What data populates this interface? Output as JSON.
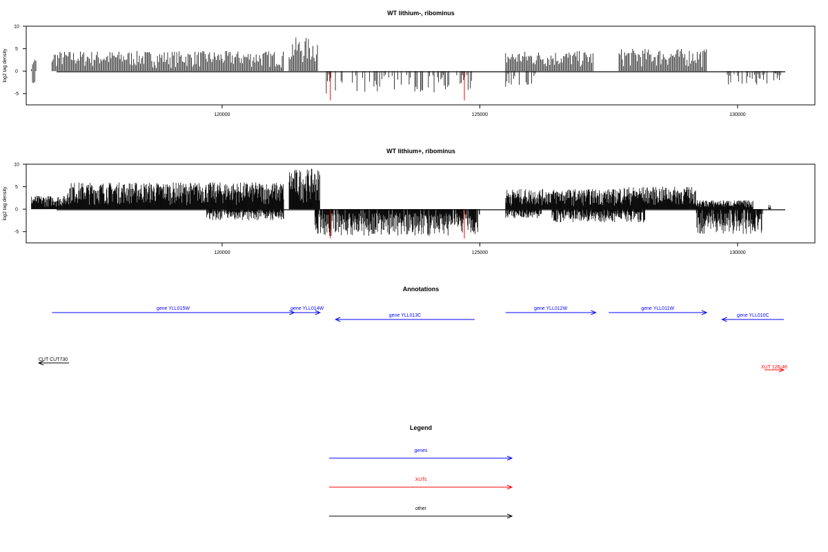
{
  "chart_data": [
    {
      "type": "bar",
      "title": "WT lithium-, ribominus",
      "ylabel": "log2 tag density",
      "xlim": [
        116200,
        131500
      ],
      "ylim": [
        -7.5,
        10
      ],
      "x_ticks": [
        120000,
        125000,
        130000
      ],
      "y_ticks": [
        10,
        5,
        0,
        -5
      ],
      "grid": false,
      "series": [
        {
          "color": "#000000",
          "segments": [
            {
              "x": [
                116300,
                116400
              ],
              "y": [
                3,
                -3.5
              ]
            },
            {
              "x": [
                116700,
                121200
              ],
              "y": [
                4.5,
                0
              ]
            },
            {
              "x": [
                121300,
                121850
              ],
              "y": [
                7.5,
                0
              ]
            },
            {
              "x": [
                122000,
                124900
              ],
              "y": [
                0,
                -5
              ]
            },
            {
              "x": [
                125500,
                126200
              ],
              "y": [
                0,
                -3.5
              ]
            },
            {
              "x": [
                125500,
                127200
              ],
              "y": [
                4.5,
                0
              ]
            },
            {
              "x": [
                127700,
                129400
              ],
              "y": [
                5,
                0
              ]
            },
            {
              "x": [
                129800,
                130900
              ],
              "y": [
                0,
                -3
              ]
            }
          ]
        },
        {
          "color": "#ff0000",
          "spikes": [
            {
              "x": 122100,
              "y": -6.5
            },
            {
              "x": 124700,
              "y": -6.5
            }
          ]
        }
      ]
    },
    {
      "type": "bar",
      "title": "WT lithium+, ribominus",
      "ylabel": "log2 tag density",
      "xlim": [
        116200,
        131500
      ],
      "ylim": [
        -7.5,
        10
      ],
      "x_ticks": [
        120000,
        125000,
        130000
      ],
      "y_ticks": [
        10,
        5,
        0,
        -5
      ],
      "grid": false,
      "series": [
        {
          "color": "#000000",
          "segments": [
            {
              "x": [
                116300,
                117000
              ],
              "y": [
                3,
                0
              ]
            },
            {
              "x": [
                117000,
                121200
              ],
              "y": [
                6,
                0
              ]
            },
            {
              "x": [
                121300,
                121900
              ],
              "y": [
                9,
                0
              ]
            },
            {
              "x": [
                119700,
                121200
              ],
              "y": [
                0,
                -2.5
              ]
            },
            {
              "x": [
                121800,
                125000
              ],
              "y": [
                0,
                -6
              ]
            },
            {
              "x": [
                125500,
                126200
              ],
              "y": [
                0,
                -2
              ]
            },
            {
              "x": [
                125500,
                127700
              ],
              "y": [
                4.5,
                0
              ]
            },
            {
              "x": [
                127700,
                129200
              ],
              "y": [
                5,
                0
              ]
            },
            {
              "x": [
                126400,
                128200
              ],
              "y": [
                0,
                -3
              ]
            },
            {
              "x": [
                129200,
                130500
              ],
              "y": [
                0,
                -5.5
              ]
            },
            {
              "x": [
                129200,
                130300
              ],
              "y": [
                2,
                0
              ]
            },
            {
              "x": [
                130600,
                130650
              ],
              "y": [
                1,
                0
              ]
            }
          ]
        },
        {
          "color": "#ff0000",
          "spikes": [
            {
              "x": 122100,
              "y": -6.5
            },
            {
              "x": 124700,
              "y": -6.5
            }
          ]
        }
      ]
    }
  ],
  "annotations": {
    "title": "Annotations",
    "features": [
      {
        "label": "gene YLL015W",
        "color": "#0000ff",
        "x1": 116700,
        "x2": 121400,
        "direction": "right"
      },
      {
        "label": "gene YLL014W",
        "color": "#0000ff",
        "x1": 121400,
        "x2": 121900,
        "direction": "right"
      },
      {
        "label": "gene YLL013C",
        "color": "#0000ff",
        "x1": 122200,
        "x2": 124900,
        "direction": "left"
      },
      {
        "label": "gene YLL012W",
        "color": "#0000ff",
        "x1": 125500,
        "x2": 127250,
        "direction": "right"
      },
      {
        "label": "gene YLL011W",
        "color": "#0000ff",
        "x1": 127500,
        "x2": 129400,
        "direction": "right"
      },
      {
        "label": "gene YLL010C",
        "color": "#0000ff",
        "x1": 129700,
        "x2": 130900,
        "direction": "left"
      },
      {
        "label": "CUT CUT730",
        "color": "#000000",
        "x1": 116400,
        "x2": 116600,
        "direction": "left"
      },
      {
        "label": "XUT 12F-46",
        "color": "#ff0000",
        "x1": 130700,
        "x2": 130900,
        "direction": "right"
      }
    ]
  },
  "legend": {
    "title": "Legend",
    "items": [
      {
        "label": "genes",
        "color": "#0000ff"
      },
      {
        "label": "XUTs",
        "color": "#ff0000"
      },
      {
        "label": "other",
        "color": "#000000"
      }
    ]
  }
}
